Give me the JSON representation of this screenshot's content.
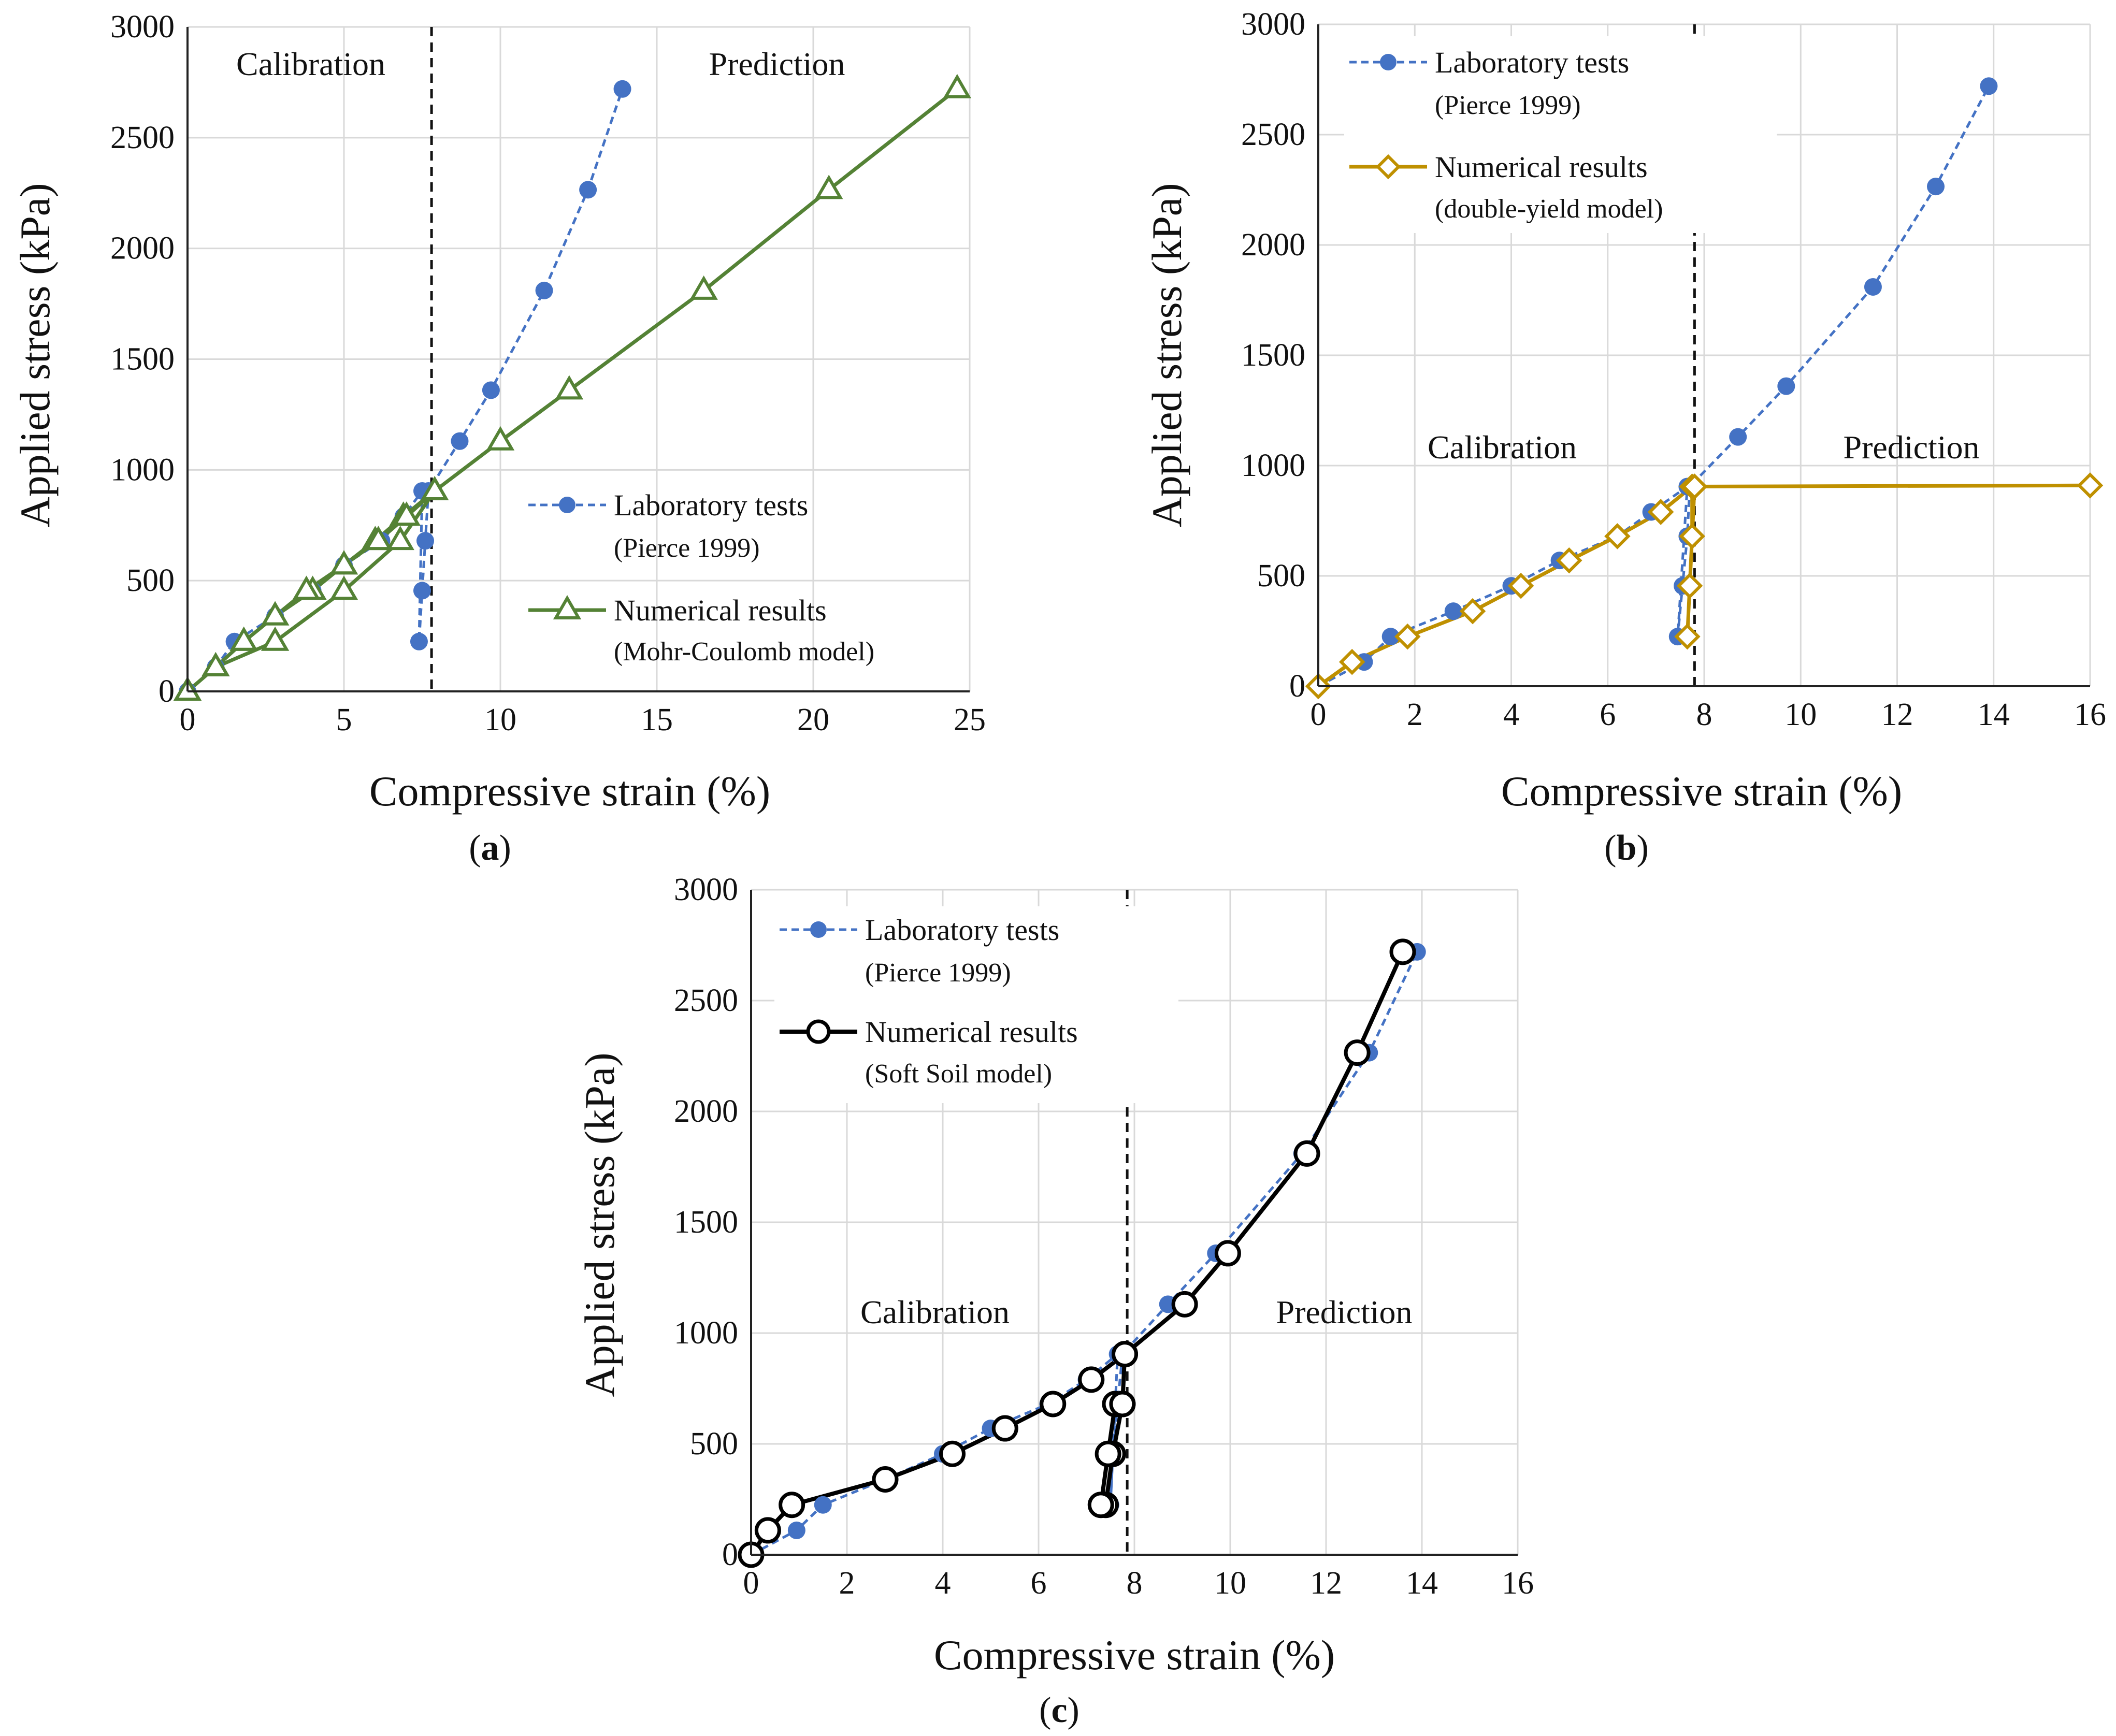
{
  "figure": {
    "captions": [
      "(a)",
      "(b)",
      "(c)"
    ],
    "caption_letters": [
      "a",
      "b",
      "c"
    ]
  },
  "colors": {
    "lab": "#4472C4",
    "mc": "#548235",
    "dy": "#BF9000",
    "ss": "#000000",
    "grid": "#d9d9d9"
  },
  "chart_data": [
    {
      "id": "a",
      "type": "line",
      "caption": "(a)",
      "xlabel": "Compressive strain (%)",
      "ylabel": "Applied stress (kPa)",
      "xlim": [
        0,
        25
      ],
      "ylim": [
        0,
        3000
      ],
      "xticks": [
        0,
        5,
        10,
        15,
        20,
        25
      ],
      "yticks": [
        0,
        500,
        1000,
        1500,
        2000,
        2500,
        3000
      ],
      "divider_x": 7.8,
      "regions": [
        "Calibration",
        "Prediction"
      ],
      "legend": [
        {
          "name": "Laboratory tests",
          "sub": "(Pierce 1999)",
          "style": "lab"
        },
        {
          "name": "Numerical results",
          "sub": "(Mohr-Coulomb model)",
          "style": "mc"
        }
      ],
      "series": [
        {
          "name": "Laboratory tests (Pierce 1999)",
          "style": "lab",
          "x": [
            0,
            0.9,
            1.5,
            2.8,
            4.0,
            5.0,
            6.2,
            6.9,
            7.5,
            7.4,
            7.5,
            7.6,
            7.7,
            8.7,
            9.7,
            11.4,
            12.8,
            13.9
          ],
          "y": [
            0,
            110,
            225,
            340,
            455,
            570,
            680,
            790,
            905,
            225,
            455,
            680,
            905,
            1130,
            1360,
            1810,
            2265,
            2720
          ]
        },
        {
          "name": "Numerical results (Mohr-Coulomb model)",
          "style": "mc",
          "x": [
            0,
            0.9,
            1.8,
            2.8,
            4.0,
            5.0,
            6.0,
            6.9,
            7.9,
            6.8,
            5.0,
            2.8,
            0.9,
            0,
            0.9,
            1.8,
            2.8,
            3.8,
            5.0,
            6.1,
            7.0,
            7.9,
            10.0,
            12.2,
            16.5,
            20.5,
            24.6
          ],
          "y": [
            0,
            110,
            225,
            340,
            455,
            570,
            680,
            790,
            905,
            680,
            455,
            225,
            110,
            0,
            110,
            225,
            340,
            455,
            570,
            680,
            790,
            905,
            1130,
            1360,
            1810,
            2265,
            2720
          ]
        }
      ]
    },
    {
      "id": "b",
      "type": "line",
      "caption": "(b)",
      "xlabel": "Compressive strain (%)",
      "ylabel": "Applied stress (kPa)",
      "xlim": [
        0,
        16
      ],
      "ylim": [
        0,
        3000
      ],
      "xticks": [
        0,
        2,
        4,
        6,
        8,
        10,
        12,
        14,
        16
      ],
      "yticks": [
        0,
        500,
        1000,
        1500,
        2000,
        2500,
        3000
      ],
      "divider_x": 7.8,
      "regions": [
        "Calibration",
        "Prediction"
      ],
      "legend": [
        {
          "name": "Laboratory tests",
          "sub": "(Pierce 1999)",
          "style": "lab"
        },
        {
          "name": "Numerical results",
          "sub": "(double-yield model)",
          "style": "dy"
        }
      ],
      "series": [
        {
          "name": "Laboratory tests (Pierce 1999)",
          "style": "lab",
          "x": [
            0,
            0.95,
            1.5,
            2.8,
            4.0,
            5.0,
            6.2,
            6.9,
            7.65,
            7.45,
            7.55,
            7.65,
            7.7,
            8.7,
            9.7,
            11.5,
            12.8,
            13.9
          ],
          "y": [
            0,
            110,
            225,
            340,
            455,
            570,
            680,
            790,
            905,
            225,
            455,
            680,
            905,
            1130,
            1360,
            1810,
            2265,
            2720
          ]
        },
        {
          "name": "Numerical results (double-yield model)",
          "style": "dy",
          "x": [
            0,
            0.7,
            1.85,
            3.2,
            4.2,
            5.2,
            6.2,
            7.1,
            7.75,
            7.75,
            7.7,
            7.65,
            7.8,
            16.0
          ],
          "y": [
            0,
            110,
            225,
            340,
            455,
            570,
            680,
            790,
            905,
            680,
            455,
            225,
            905,
            910
          ]
        }
      ]
    },
    {
      "id": "c",
      "type": "line",
      "caption": "(c)",
      "xlabel": "Compressive strain (%)",
      "ylabel": "Applied stress (kPa)",
      "xlim": [
        0,
        16
      ],
      "ylim": [
        0,
        3000
      ],
      "xticks": [
        0,
        2,
        4,
        6,
        8,
        10,
        12,
        14,
        16
      ],
      "yticks": [
        0,
        500,
        1000,
        1500,
        2000,
        2500,
        3000
      ],
      "divider_x": 7.85,
      "regions": [
        "Calibration",
        "Prediction"
      ],
      "legend": [
        {
          "name": "Laboratory tests",
          "sub": "(Pierce 1999)",
          "style": "lab"
        },
        {
          "name": "Numerical results",
          "sub": "(Soft Soil model)",
          "style": "ss"
        }
      ],
      "series": [
        {
          "name": "Laboratory tests (Pierce 1999)",
          "style": "lab",
          "x": [
            0,
            0.95,
            1.5,
            2.8,
            4.0,
            5.0,
            6.2,
            7.0,
            7.65,
            7.5,
            7.55,
            7.65,
            7.75,
            8.7,
            9.7,
            11.5,
            12.9,
            13.9
          ],
          "y": [
            0,
            110,
            225,
            340,
            455,
            570,
            680,
            790,
            905,
            225,
            455,
            680,
            905,
            1130,
            1360,
            1810,
            2265,
            2720
          ]
        },
        {
          "name": "Numerical results (Soft Soil model)",
          "style": "ss",
          "x": [
            0,
            0.35,
            0.85,
            2.8,
            4.2,
            5.3,
            6.3,
            7.1,
            7.8,
            7.75,
            7.55,
            7.4,
            7.3,
            7.45,
            7.6,
            7.75,
            7.8,
            9.05,
            9.95,
            11.6,
            12.65,
            13.6
          ],
          "y": [
            0,
            110,
            225,
            340,
            455,
            570,
            680,
            790,
            905,
            680,
            455,
            225,
            225,
            455,
            680,
            680,
            905,
            1130,
            1360,
            1810,
            2265,
            2720
          ]
        }
      ]
    }
  ]
}
